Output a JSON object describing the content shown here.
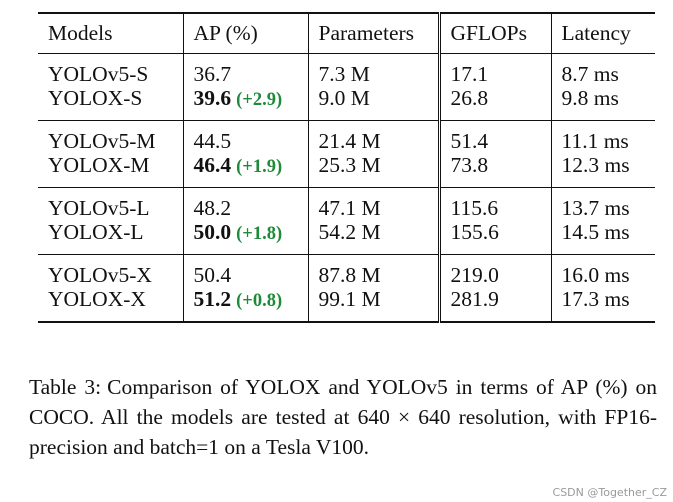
{
  "table": {
    "headers": {
      "models": "Models",
      "ap": "AP (%)",
      "parameters": "Parameters",
      "gflops": "GFLOPs",
      "latency": "Latency"
    },
    "groups": [
      {
        "rows": [
          {
            "model": "YOLOv5-S",
            "ap": "36.7",
            "ap_gain": "",
            "params": "7.3 M",
            "gflops": "17.1",
            "latency": "8.7 ms"
          },
          {
            "model": "YOLOX-S",
            "ap": "39.6",
            "ap_gain": "(+2.9)",
            "params": "9.0 M",
            "gflops": "26.8",
            "latency": "9.8 ms"
          }
        ]
      },
      {
        "rows": [
          {
            "model": "YOLOv5-M",
            "ap": "44.5",
            "ap_gain": "",
            "params": "21.4 M",
            "gflops": "51.4",
            "latency": "11.1 ms"
          },
          {
            "model": "YOLOX-M",
            "ap": "46.4",
            "ap_gain": "(+1.9)",
            "params": "25.3 M",
            "gflops": "73.8",
            "latency": "12.3 ms"
          }
        ]
      },
      {
        "rows": [
          {
            "model": "YOLOv5-L",
            "ap": "48.2",
            "ap_gain": "",
            "params": "47.1 M",
            "gflops": "115.6",
            "latency": "13.7 ms"
          },
          {
            "model": "YOLOX-L",
            "ap": "50.0",
            "ap_gain": "(+1.8)",
            "params": "54.2 M",
            "gflops": "155.6",
            "latency": "14.5 ms"
          }
        ]
      },
      {
        "rows": [
          {
            "model": "YOLOv5-X",
            "ap": "50.4",
            "ap_gain": "",
            "params": "87.8 M",
            "gflops": "219.0",
            "latency": "16.0 ms"
          },
          {
            "model": "YOLOX-X",
            "ap": "51.2",
            "ap_gain": "(+0.8)",
            "params": "99.1 M",
            "gflops": "281.9",
            "latency": "17.3 ms"
          }
        ]
      }
    ]
  },
  "caption": {
    "label": "Table 3:",
    "text": "Comparison of YOLOX and YOLOv5 in terms of AP (%) on COCO. All the models are tested at 640 × 640 resolution, with FP16-precision and batch=1 on a Tesla V100."
  },
  "watermark": "CSDN @Together_CZ",
  "colors": {
    "gain": "#1f8b3a"
  }
}
